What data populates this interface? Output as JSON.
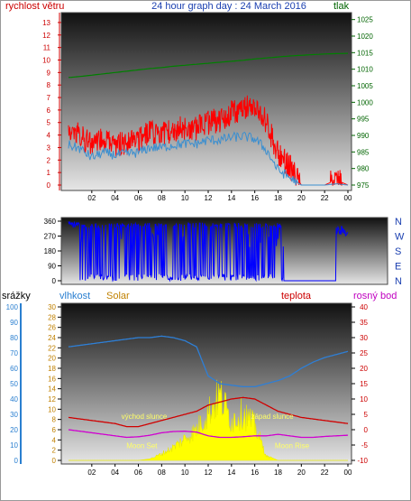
{
  "header": {
    "left_label": "rychlost větru",
    "title": "24 hour graph day : 24 March 2016",
    "right_label": "tlak"
  },
  "bottom_labels": {
    "srazky": "srážky",
    "vlhkost": "vlhkost",
    "solar": "Solar",
    "teplota": "teplota",
    "rosny_bod": "rosný bod"
  },
  "colors": {
    "wind_gust": "#ff0000",
    "wind_avg": "#3b8fd0",
    "pressure": "#008000",
    "direction": "#0000ff",
    "humidity": "#2e7fd6",
    "temperature": "#d00000",
    "dew_point": "#d000d0",
    "solar": "#ffff00",
    "left_axis_red": "#cc0000",
    "pressure_axis": "#006400",
    "rain_axis": "#2a7fd0",
    "solar_axis": "#c08000",
    "temp_axis": "#cc0000"
  },
  "chart_data": [
    {
      "type": "line",
      "name": "wind-pressure",
      "x_ticks": [
        "02",
        "04",
        "06",
        "08",
        "10",
        "12",
        "14",
        "16",
        "18",
        "20",
        "22",
        "00"
      ],
      "y_left_ticks": [
        "0",
        "1",
        "2",
        "3",
        "4",
        "5",
        "6",
        "7",
        "8",
        "9",
        "10",
        "11",
        "12",
        "13"
      ],
      "y_right_ticks": [
        "975",
        "980",
        "985",
        "990",
        "995",
        "1000",
        "1005",
        "1010",
        "1015",
        "1020",
        "1025"
      ],
      "ylim_left": [
        0,
        13.5
      ],
      "ylim_right": [
        975,
        1026
      ],
      "x_hours": [
        0,
        1,
        2,
        3,
        4,
        5,
        6,
        7,
        8,
        9,
        10,
        11,
        12,
        13,
        14,
        15,
        16,
        17,
        18,
        19,
        20,
        21,
        22,
        23,
        24
      ],
      "series": [
        {
          "key": "gust",
          "values": [
            4.2,
            4.0,
            3.1,
            3.7,
            3.2,
            3.3,
            3.6,
            4.2,
            4.1,
            4.4,
            4.6,
            4.5,
            5.0,
            5.2,
            5.8,
            6.0,
            6.5,
            5.0,
            2.5,
            1.5,
            0,
            0,
            0,
            0.4,
            0
          ]
        },
        {
          "key": "avg",
          "values": [
            3.2,
            2.9,
            2.2,
            2.6,
            2.4,
            2.5,
            2.6,
            3.0,
            3.0,
            3.2,
            3.3,
            3.3,
            3.6,
            3.6,
            3.8,
            3.9,
            3.7,
            2.8,
            1.2,
            0.6,
            0,
            0,
            0,
            0.1,
            0
          ]
        },
        {
          "key": "pressure",
          "values": [
            1007.5,
            1007.8,
            1008.2,
            1008.6,
            1009.0,
            1009.4,
            1009.8,
            1010.2,
            1010.5,
            1010.9,
            1011.2,
            1011.5,
            1011.8,
            1012.1,
            1012.4,
            1012.7,
            1013.1,
            1013.4,
            1013.7,
            1014.0,
            1014.2,
            1014.4,
            1014.6,
            1014.7,
            1014.8
          ]
        }
      ]
    },
    {
      "type": "line",
      "name": "wind-direction",
      "x_ticks": [
        "02",
        "04",
        "06",
        "08",
        "10",
        "12",
        "14",
        "16",
        "18",
        "20",
        "22",
        "00"
      ],
      "y_left_ticks": [
        "0",
        "90",
        "180",
        "270",
        "360"
      ],
      "compass": [
        "N",
        "W",
        "S",
        "E",
        "N"
      ],
      "ylim": [
        0,
        360
      ]
    },
    {
      "type": "line",
      "name": "temp-humidity-solar",
      "x_ticks": [
        "02",
        "04",
        "06",
        "08",
        "10",
        "12",
        "14",
        "16",
        "18",
        "20",
        "22",
        "00"
      ],
      "y_rain_ticks": [
        "0",
        "10",
        "20",
        "30",
        "40",
        "50",
        "60",
        "70",
        "80",
        "90",
        "100"
      ],
      "y_solar_ticks": [
        "0",
        "2",
        "4",
        "6",
        "8",
        "10",
        "12",
        "14",
        "16",
        "18",
        "20",
        "22",
        "24",
        "26",
        "28",
        "30"
      ],
      "y_temp_ticks": [
        "-10",
        "-5",
        "0",
        "5",
        "10",
        "15",
        "20",
        "25",
        "30",
        "35",
        "40"
      ],
      "ylim_humidity": [
        0,
        100
      ],
      "ylim_temp": [
        -10,
        40
      ],
      "x_hours": [
        0,
        1,
        2,
        3,
        4,
        5,
        6,
        7,
        8,
        9,
        10,
        11,
        12,
        13,
        14,
        15,
        16,
        17,
        18,
        19,
        20,
        21,
        22,
        23,
        24
      ],
      "series": [
        {
          "key": "humidity",
          "values": [
            74,
            75,
            76,
            77,
            78,
            79,
            80,
            80,
            81,
            80,
            78,
            74,
            55,
            50,
            49,
            48,
            48,
            50,
            52,
            55,
            60,
            64,
            67,
            69,
            71
          ]
        },
        {
          "key": "temperature",
          "values": [
            4,
            3.5,
            3,
            2.5,
            2,
            1,
            1,
            2,
            3,
            4,
            5,
            6,
            8,
            9,
            10,
            10.5,
            10,
            8,
            6,
            5,
            4,
            3.5,
            3,
            2.5,
            2
          ]
        },
        {
          "key": "dew_point",
          "values": [
            0,
            -0.5,
            -1,
            -1.5,
            -2,
            -2.5,
            -2.3,
            -1.8,
            -1.0,
            -0.6,
            -0.5,
            -0.8,
            -2.0,
            -2.5,
            -2.5,
            -2.3,
            -2.0,
            -2.0,
            -1.5,
            -2.0,
            -2.5,
            -2.5,
            -2.2,
            -2.0,
            -1.8
          ]
        },
        {
          "key": "solar",
          "values": [
            0,
            0,
            0,
            0,
            0,
            0,
            0,
            0.3,
            1.5,
            3,
            5,
            7,
            11,
            15,
            9,
            11,
            8,
            1,
            0,
            0,
            0,
            0,
            0,
            0,
            0
          ]
        }
      ],
      "annotations": [
        {
          "text": "východ slunce",
          "hour": 6.5
        },
        {
          "text": "západ slunce",
          "hour": 17.5
        },
        {
          "text": "Moon Set",
          "hour": 6.3
        },
        {
          "text": "Moon Rise",
          "hour": 19.2
        }
      ]
    }
  ]
}
